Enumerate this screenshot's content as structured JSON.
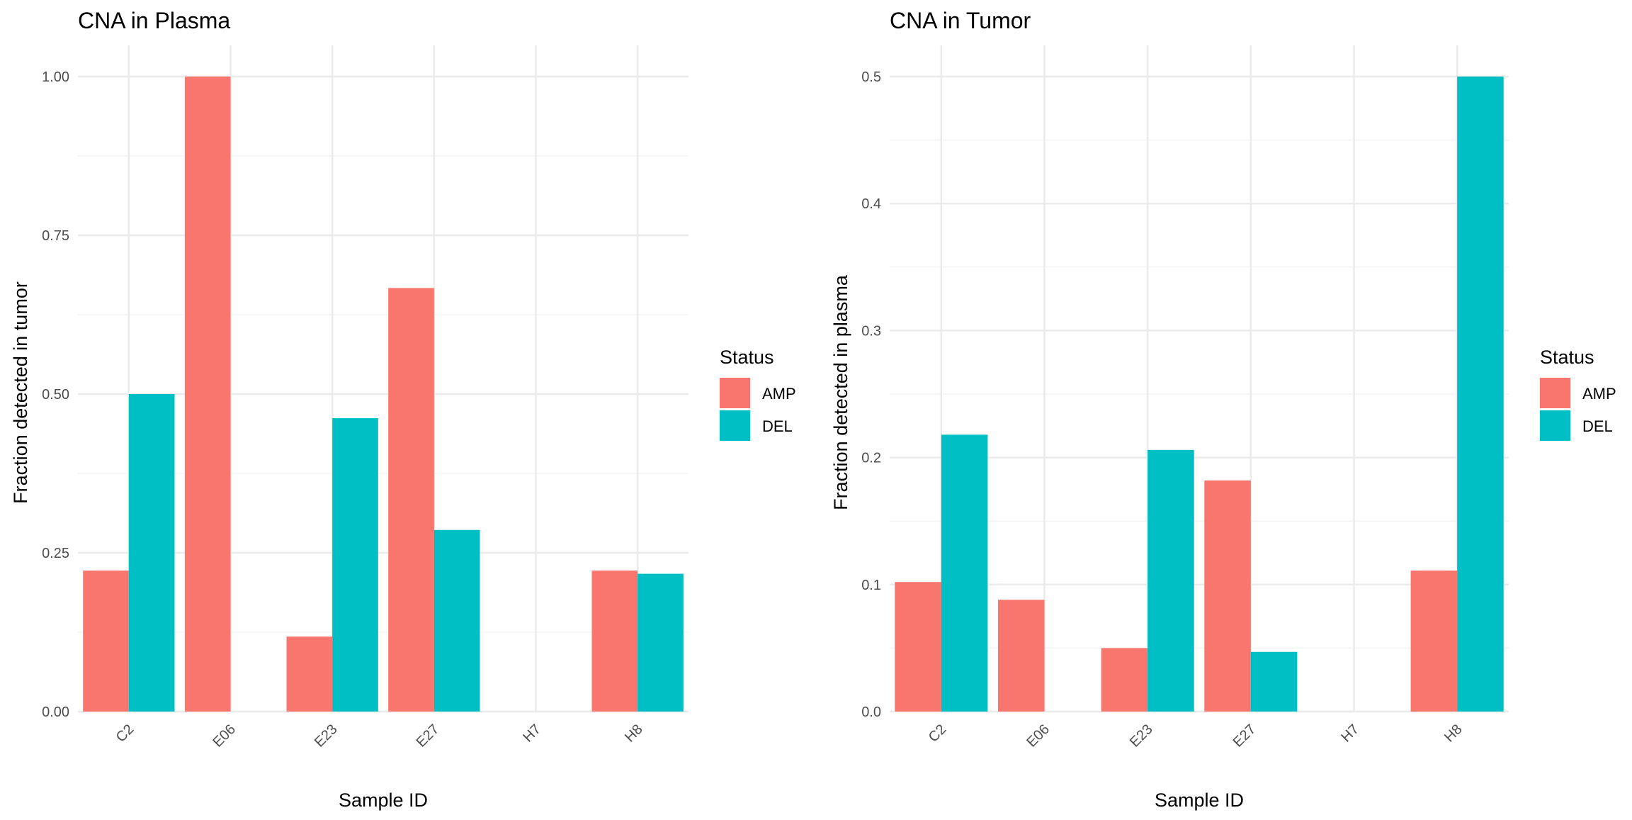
{
  "chart_data": [
    {
      "type": "bar",
      "title": "CNA in Plasma",
      "xlabel": "Sample ID",
      "ylabel": "Fraction detected in tumor",
      "categories": [
        "C2",
        "E06",
        "E23",
        "E27",
        "H7",
        "H8"
      ],
      "series": [
        {
          "name": "AMP",
          "color": "#F8766D",
          "values": [
            0.222,
            1.0,
            0.118,
            0.667,
            null,
            0.222
          ]
        },
        {
          "name": "DEL",
          "color": "#00BFC4",
          "values": [
            0.5,
            null,
            0.462,
            0.286,
            null,
            0.217
          ]
        }
      ],
      "ylim": [
        0,
        1.0
      ],
      "yticks": [
        0,
        0.25,
        0.5,
        0.75,
        1.0
      ],
      "ytick_labels": [
        "0.00",
        "0.25",
        "0.50",
        "0.75",
        "1.00"
      ],
      "grid": true,
      "legend": {
        "title": "Status",
        "placement": "right"
      }
    },
    {
      "type": "bar",
      "title": "CNA in Tumor",
      "xlabel": "Sample ID",
      "ylabel": "Fraction detected in plasma",
      "categories": [
        "C2",
        "E06",
        "E23",
        "E27",
        "H7",
        "H8"
      ],
      "series": [
        {
          "name": "AMP",
          "color": "#F8766D",
          "values": [
            0.102,
            0.088,
            0.05,
            0.182,
            null,
            0.111
          ]
        },
        {
          "name": "DEL",
          "color": "#00BFC4",
          "values": [
            0.218,
            null,
            0.206,
            0.047,
            null,
            0.5
          ]
        }
      ],
      "ylim": [
        0,
        0.5
      ],
      "yticks": [
        0,
        0.1,
        0.2,
        0.3,
        0.4,
        0.5
      ],
      "ytick_labels": [
        "0.0",
        "0.1",
        "0.2",
        "0.3",
        "0.4",
        "0.5"
      ],
      "grid": true,
      "legend": {
        "title": "Status",
        "placement": "right"
      }
    }
  ]
}
